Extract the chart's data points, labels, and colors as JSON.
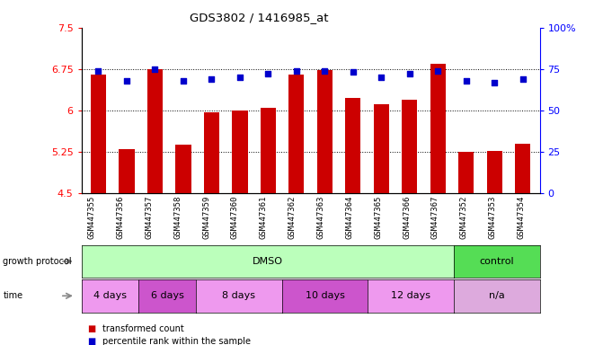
{
  "title": "GDS3802 / 1416985_at",
  "samples": [
    "GSM447355",
    "GSM447356",
    "GSM447357",
    "GSM447358",
    "GSM447359",
    "GSM447360",
    "GSM447361",
    "GSM447362",
    "GSM447363",
    "GSM447364",
    "GSM447365",
    "GSM447366",
    "GSM447367",
    "GSM447352",
    "GSM447353",
    "GSM447354"
  ],
  "bar_values": [
    6.65,
    5.3,
    6.75,
    5.38,
    5.97,
    6.0,
    6.05,
    6.65,
    6.73,
    6.22,
    6.12,
    6.2,
    6.85,
    5.25,
    5.27,
    5.4
  ],
  "dot_values": [
    74,
    68,
    75,
    68,
    69,
    70,
    72,
    74,
    74,
    73,
    70,
    72,
    74,
    68,
    67,
    69
  ],
  "bar_color": "#cc0000",
  "dot_color": "#0000cc",
  "ylim_left": [
    4.5,
    7.5
  ],
  "ylim_right": [
    0,
    100
  ],
  "yticks_left": [
    4.5,
    5.25,
    6.0,
    6.75,
    7.5
  ],
  "yticks_right": [
    0,
    25,
    50,
    75,
    100
  ],
  "ytick_labels_left": [
    "4.5",
    "5.25",
    "6",
    "6.75",
    "7.5"
  ],
  "ytick_labels_right": [
    "0",
    "25",
    "50",
    "75",
    "100%"
  ],
  "grid_lines": [
    5.25,
    6.0,
    6.75
  ],
  "growth_protocol_groups": [
    {
      "label": "DMSO",
      "start": 0,
      "end": 13,
      "color": "#bbffbb"
    },
    {
      "label": "control",
      "start": 13,
      "end": 16,
      "color": "#55dd55"
    }
  ],
  "time_groups": [
    {
      "label": "4 days",
      "start": 0,
      "end": 2,
      "color": "#ee99ee"
    },
    {
      "label": "6 days",
      "start": 2,
      "end": 4,
      "color": "#cc55cc"
    },
    {
      "label": "8 days",
      "start": 4,
      "end": 7,
      "color": "#ee99ee"
    },
    {
      "label": "10 days",
      "start": 7,
      "end": 10,
      "color": "#cc55cc"
    },
    {
      "label": "12 days",
      "start": 10,
      "end": 13,
      "color": "#ee99ee"
    },
    {
      "label": "n/a",
      "start": 13,
      "end": 16,
      "color": "#ddaadd"
    }
  ],
  "legend_red_label": "transformed count",
  "legend_blue_label": "percentile rank within the sample",
  "bg_color": "#ffffff",
  "tick_area_color": "#cccccc",
  "gp_label": "growth protocol",
  "time_label": "time"
}
